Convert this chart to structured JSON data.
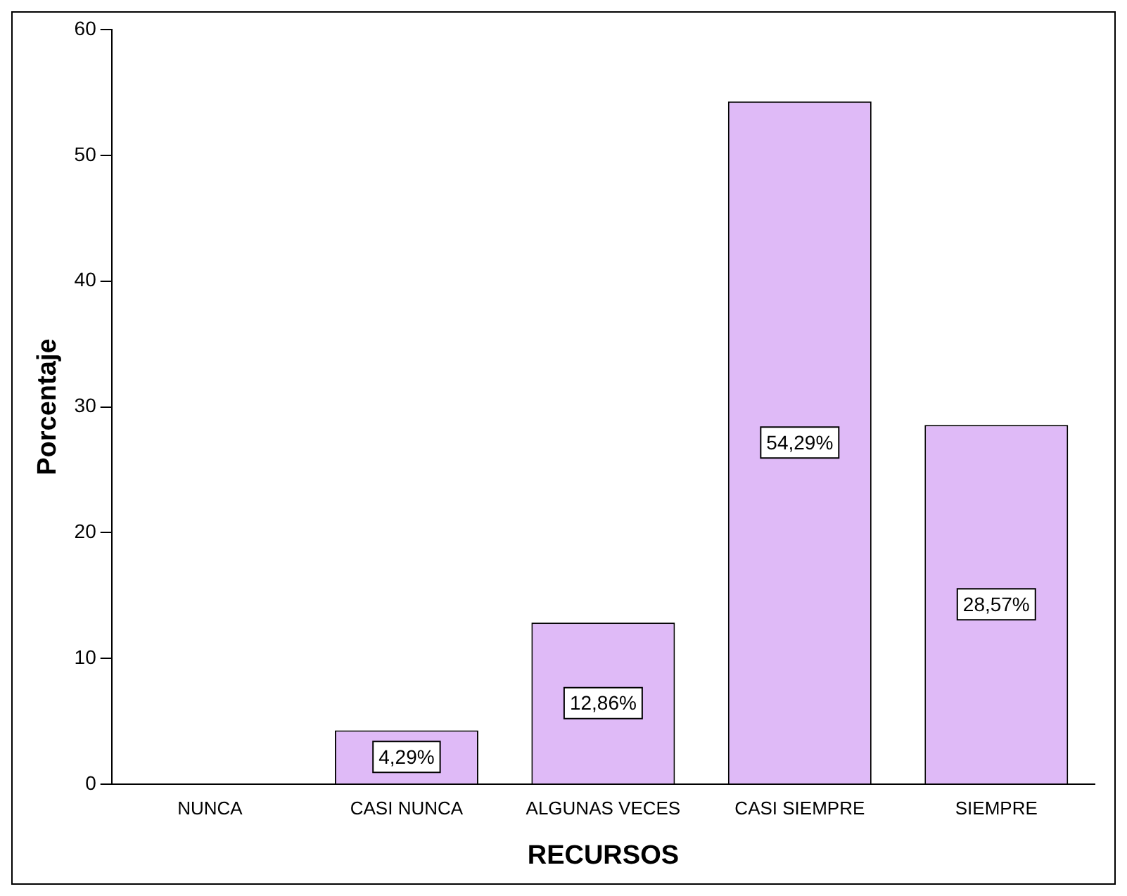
{
  "chart_data": {
    "type": "bar",
    "xlabel": "RECURSOS",
    "ylabel": "Porcentaje",
    "categories": [
      "NUNCA",
      "CASI NUNCA",
      "ALGUNAS VECES",
      "CASI SIEMPRE",
      "SIEMPRE"
    ],
    "values": [
      0,
      4.29,
      12.86,
      54.29,
      28.57
    ],
    "value_labels": [
      null,
      "4,29%",
      "12,86%",
      "54,29%",
      "28,57%"
    ],
    "color": "#dfbaf7",
    "ylim": [
      0,
      60
    ],
    "yticks": [
      0,
      10,
      20,
      30,
      40,
      50,
      60
    ],
    "grid": false,
    "legend": false
  }
}
